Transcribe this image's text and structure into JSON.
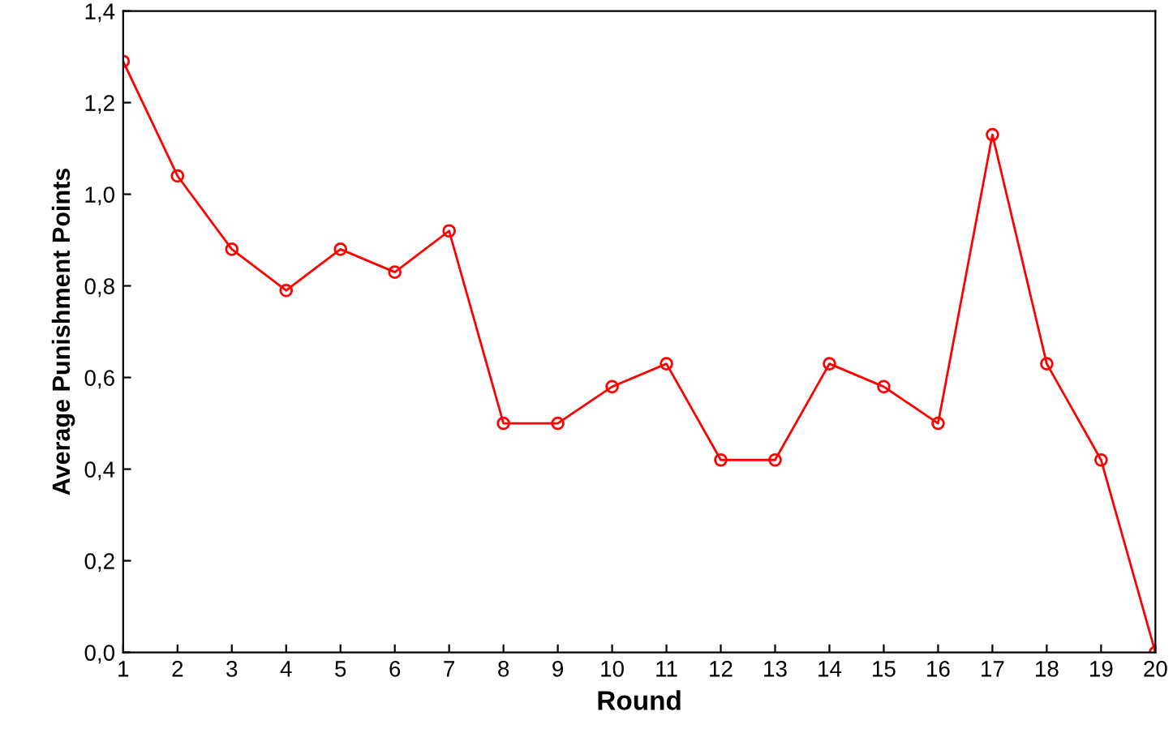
{
  "chart_data": {
    "type": "line",
    "xlabel": "Round",
    "ylabel": "Average Punishment Points",
    "x": [
      1,
      2,
      3,
      4,
      5,
      6,
      7,
      8,
      9,
      10,
      11,
      12,
      13,
      14,
      15,
      16,
      17,
      18,
      19,
      20
    ],
    "series": [
      {
        "color": "#ff0000",
        "values": [
          1.29,
          1.04,
          0.88,
          0.79,
          0.88,
          0.83,
          0.92,
          0.5,
          0.5,
          0.58,
          0.63,
          0.42,
          0.42,
          0.63,
          0.58,
          0.5,
          1.13,
          0.63,
          0.42,
          0.0
        ]
      }
    ],
    "xlim": [
      1,
      20
    ],
    "xticks": [
      1,
      2,
      3,
      4,
      5,
      6,
      7,
      8,
      9,
      10,
      11,
      12,
      13,
      14,
      15,
      16,
      17,
      18,
      19,
      20
    ],
    "ylim": [
      0,
      1.4
    ],
    "yticks": [
      {
        "value": 0,
        "label": "0,0"
      },
      {
        "value": 0.2,
        "label": "0,2"
      },
      {
        "value": 0.4,
        "label": "0,4"
      },
      {
        "value": 0.6,
        "label": "0,6"
      },
      {
        "value": 0.8,
        "label": "0,8"
      },
      {
        "value": 1.0,
        "label": "1,0"
      },
      {
        "value": 1.2,
        "label": "1,2"
      },
      {
        "value": 1.4,
        "label": "1,4"
      }
    ],
    "marker": "circle",
    "line_style": "solid",
    "grid": false
  }
}
